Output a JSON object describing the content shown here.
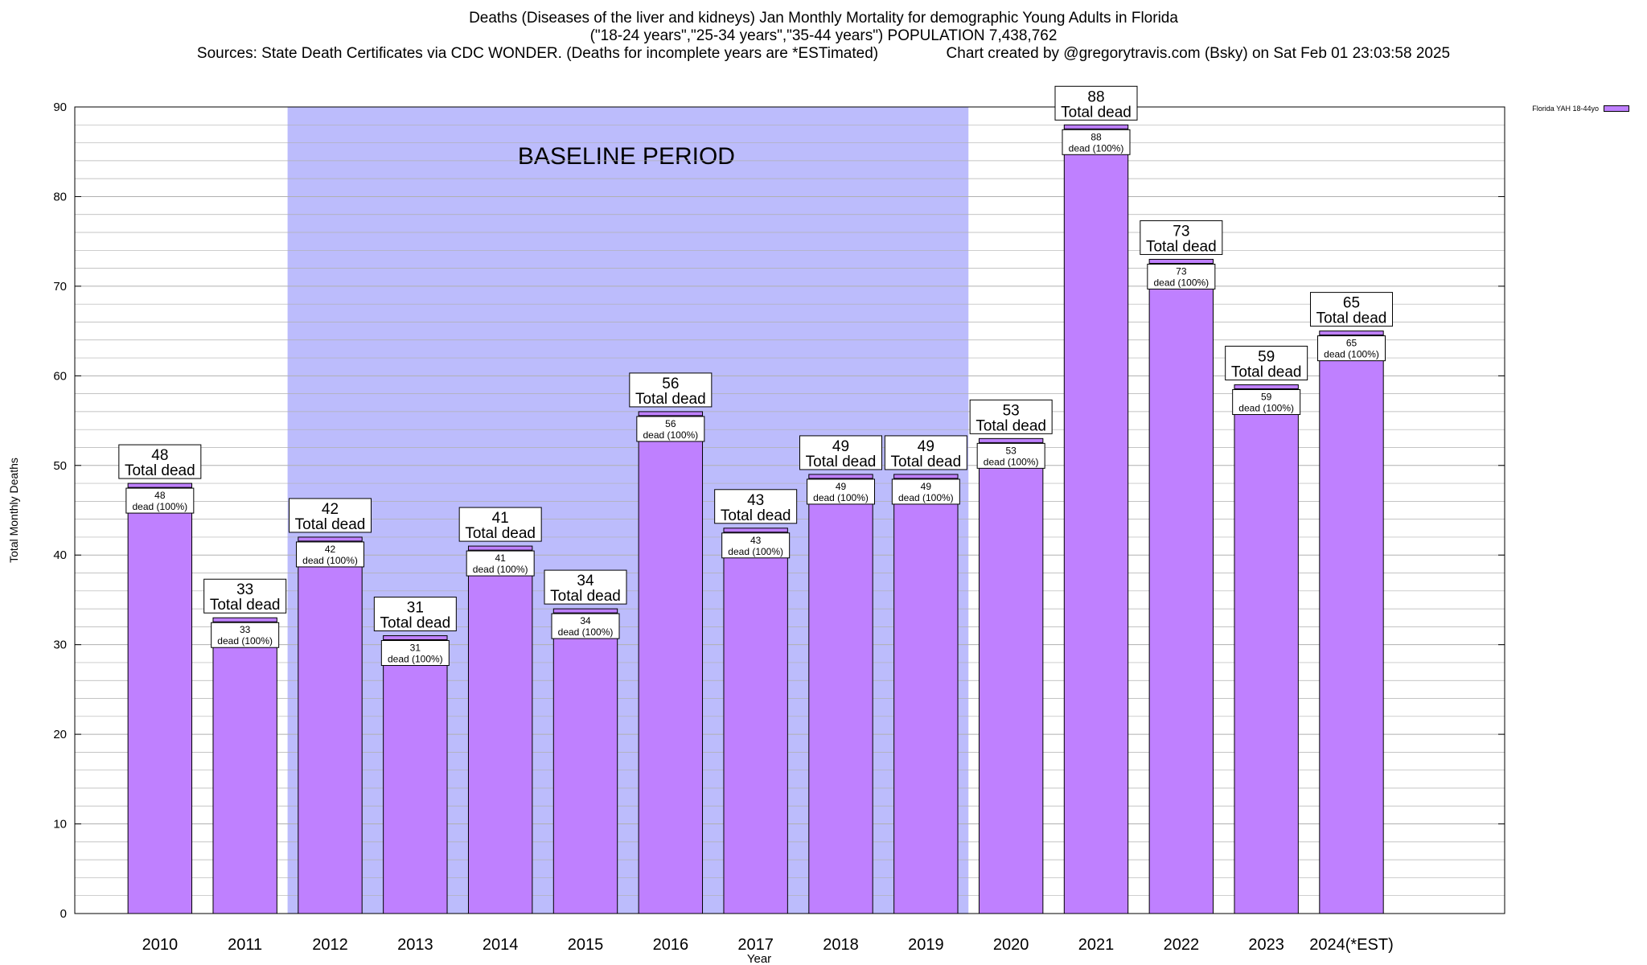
{
  "title": {
    "line1": "Deaths (Diseases of the liver and kidneys) Jan Monthly Mortality for demographic Young Adults in Florida",
    "line2": "(\"18-24 years\",\"25-34 years\",\"35-44 years\") POPULATION 7,438,762",
    "line3": "Sources: State Death Certificates via CDC WONDER. (Deaths for incomplete years are *ESTimated)                Chart created by @gregorytravis.com (Bsky) on Sat Feb 01 23:03:58 2025"
  },
  "legend": {
    "label": "Florida YAH 18-44yo"
  },
  "colors": {
    "bar": "#bf80ff",
    "baseline": "#bcbcfc",
    "grid": "#b0b0b0"
  },
  "chart_data": {
    "type": "bar",
    "categories": [
      "2010",
      "2011",
      "2012",
      "2013",
      "2014",
      "2015",
      "2016",
      "2017",
      "2018",
      "2019",
      "2020",
      "2021",
      "2022",
      "2023",
      "2024(*EST)"
    ],
    "series": [
      {
        "name": "Florida YAH 18-44yo",
        "values": [
          48,
          33,
          42,
          31,
          41,
          34,
          56,
          43,
          49,
          49,
          53,
          88,
          73,
          59,
          65
        ]
      }
    ],
    "xlabel": "Year",
    "ylabel": "Total Monthly Deaths",
    "ylim": [
      0,
      90
    ],
    "yticks": [
      0,
      10,
      20,
      30,
      40,
      50,
      60,
      70,
      80,
      90
    ],
    "minor_step": 2,
    "grid": true,
    "legend_position": "top-right",
    "baseline_period": {
      "label": "BASELINE PERIOD",
      "from": "2012",
      "to": "2019"
    },
    "bar_label_top": "Total dead",
    "bar_label_inner": "dead (100%)"
  }
}
